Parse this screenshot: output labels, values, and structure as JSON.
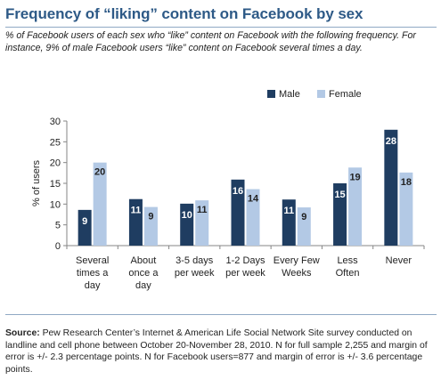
{
  "title": "Frequency of “liking” content on Facebook by sex",
  "subtitle": "% of Facebook users of each sex who “like” content on Facebook with the following frequency. For instance, 9% of male Facebook users “like” content on Facebook several times a day.",
  "source": {
    "label": "Source:",
    "text": " Pew Research Center’s Internet & American Life Social Network Site survey conducted on landline and cell phone between October 20-November 28, 2010. N for full sample 2,255 and margin of error is +/- 2.3 percentage points. N for Facebook users=877 and margin of error is +/- 3.6 percentage points."
  },
  "colors": {
    "male": "#1f3d61",
    "female": "#b3c9e5",
    "title": "#2e5a87"
  },
  "chart_data": {
    "type": "bar",
    "categories": [
      [
        "Several",
        "times a",
        "day"
      ],
      [
        "About",
        "once a",
        "day"
      ],
      [
        "3-5 days",
        "per week"
      ],
      [
        "1-2 Days",
        "per week"
      ],
      [
        "Every Few",
        "Weeks"
      ],
      [
        "Less",
        "Often"
      ],
      [
        "Never"
      ]
    ],
    "series": [
      {
        "name": "Male",
        "values": [
          8.6,
          11.2,
          10.1,
          15.9,
          11.1,
          15.0,
          27.9
        ],
        "labels": [
          "9",
          "11",
          "10",
          "16",
          "11",
          "15",
          "28"
        ]
      },
      {
        "name": "Female",
        "values": [
          20.0,
          9.3,
          10.9,
          13.6,
          9.2,
          18.8,
          17.6
        ],
        "labels": [
          "20",
          "9",
          "11",
          "14",
          "9",
          "19",
          "18"
        ]
      }
    ],
    "ylabel": "% of users",
    "xlabel": "",
    "ylim": [
      0,
      30
    ],
    "yticks": [
      0,
      5,
      10,
      15,
      20,
      25,
      30
    ],
    "legend_position": "top-right",
    "grid": false
  }
}
